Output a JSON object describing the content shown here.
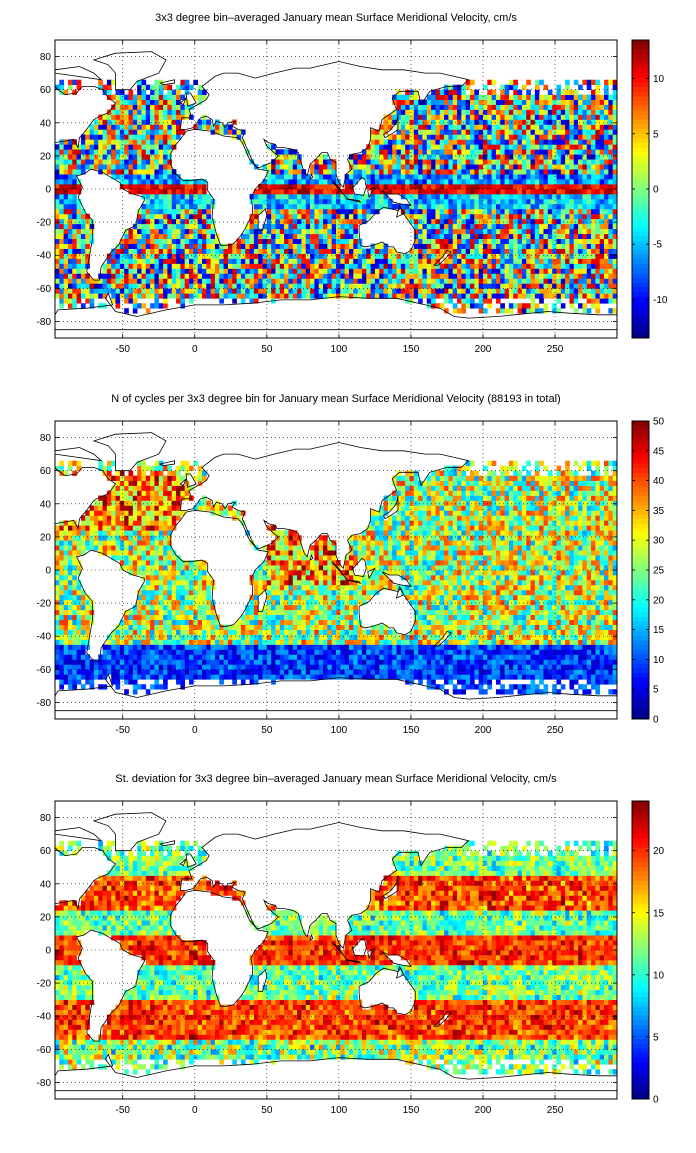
{
  "chart_data": [
    {
      "type": "heatmap",
      "title": "3x3 degree bin–averaged January mean Surface Meridional Velocity, cm/s",
      "xlim": [
        -97,
        293
      ],
      "ylim": [
        -90,
        90
      ],
      "xticks": [
        -50,
        0,
        50,
        100,
        150,
        200,
        250
      ],
      "yticks": [
        -80,
        -60,
        -40,
        -20,
        0,
        20,
        40,
        60,
        80
      ],
      "grid": true,
      "colormap": "jet",
      "colorbar": {
        "range": [
          -13.5,
          13.5
        ],
        "ticks": [
          -10,
          -5,
          0,
          5,
          10
        ]
      },
      "cell_size_deg": 3
    },
    {
      "type": "heatmap",
      "title": "N of cycles per 3x3 degree bin for January mean Surface Meridional Velocity (88193 in total)",
      "xlim": [
        -97,
        293
      ],
      "ylim": [
        -90,
        90
      ],
      "xticks": [
        -50,
        0,
        50,
        100,
        150,
        200,
        250
      ],
      "yticks": [
        -80,
        -60,
        -40,
        -20,
        0,
        20,
        40,
        60,
        80
      ],
      "grid": true,
      "colormap": "jet",
      "colorbar": {
        "range": [
          0,
          50
        ],
        "ticks": [
          0,
          5,
          10,
          15,
          20,
          25,
          30,
          35,
          40,
          45,
          50
        ]
      },
      "cell_size_deg": 3
    },
    {
      "type": "heatmap",
      "title": "St. deviation for 3x3 degree bin–averaged January mean Surface Meridional Velocity, cm/s",
      "xlim": [
        -97,
        293
      ],
      "ylim": [
        -90,
        90
      ],
      "xticks": [
        -50,
        0,
        50,
        100,
        150,
        200,
        250
      ],
      "yticks": [
        -80,
        -60,
        -40,
        -20,
        0,
        20,
        40,
        60,
        80
      ],
      "grid": true,
      "colormap": "jet",
      "colorbar": {
        "range": [
          0,
          24
        ],
        "ticks": [
          0,
          5,
          10,
          15,
          20
        ]
      },
      "cell_size_deg": 3
    }
  ]
}
